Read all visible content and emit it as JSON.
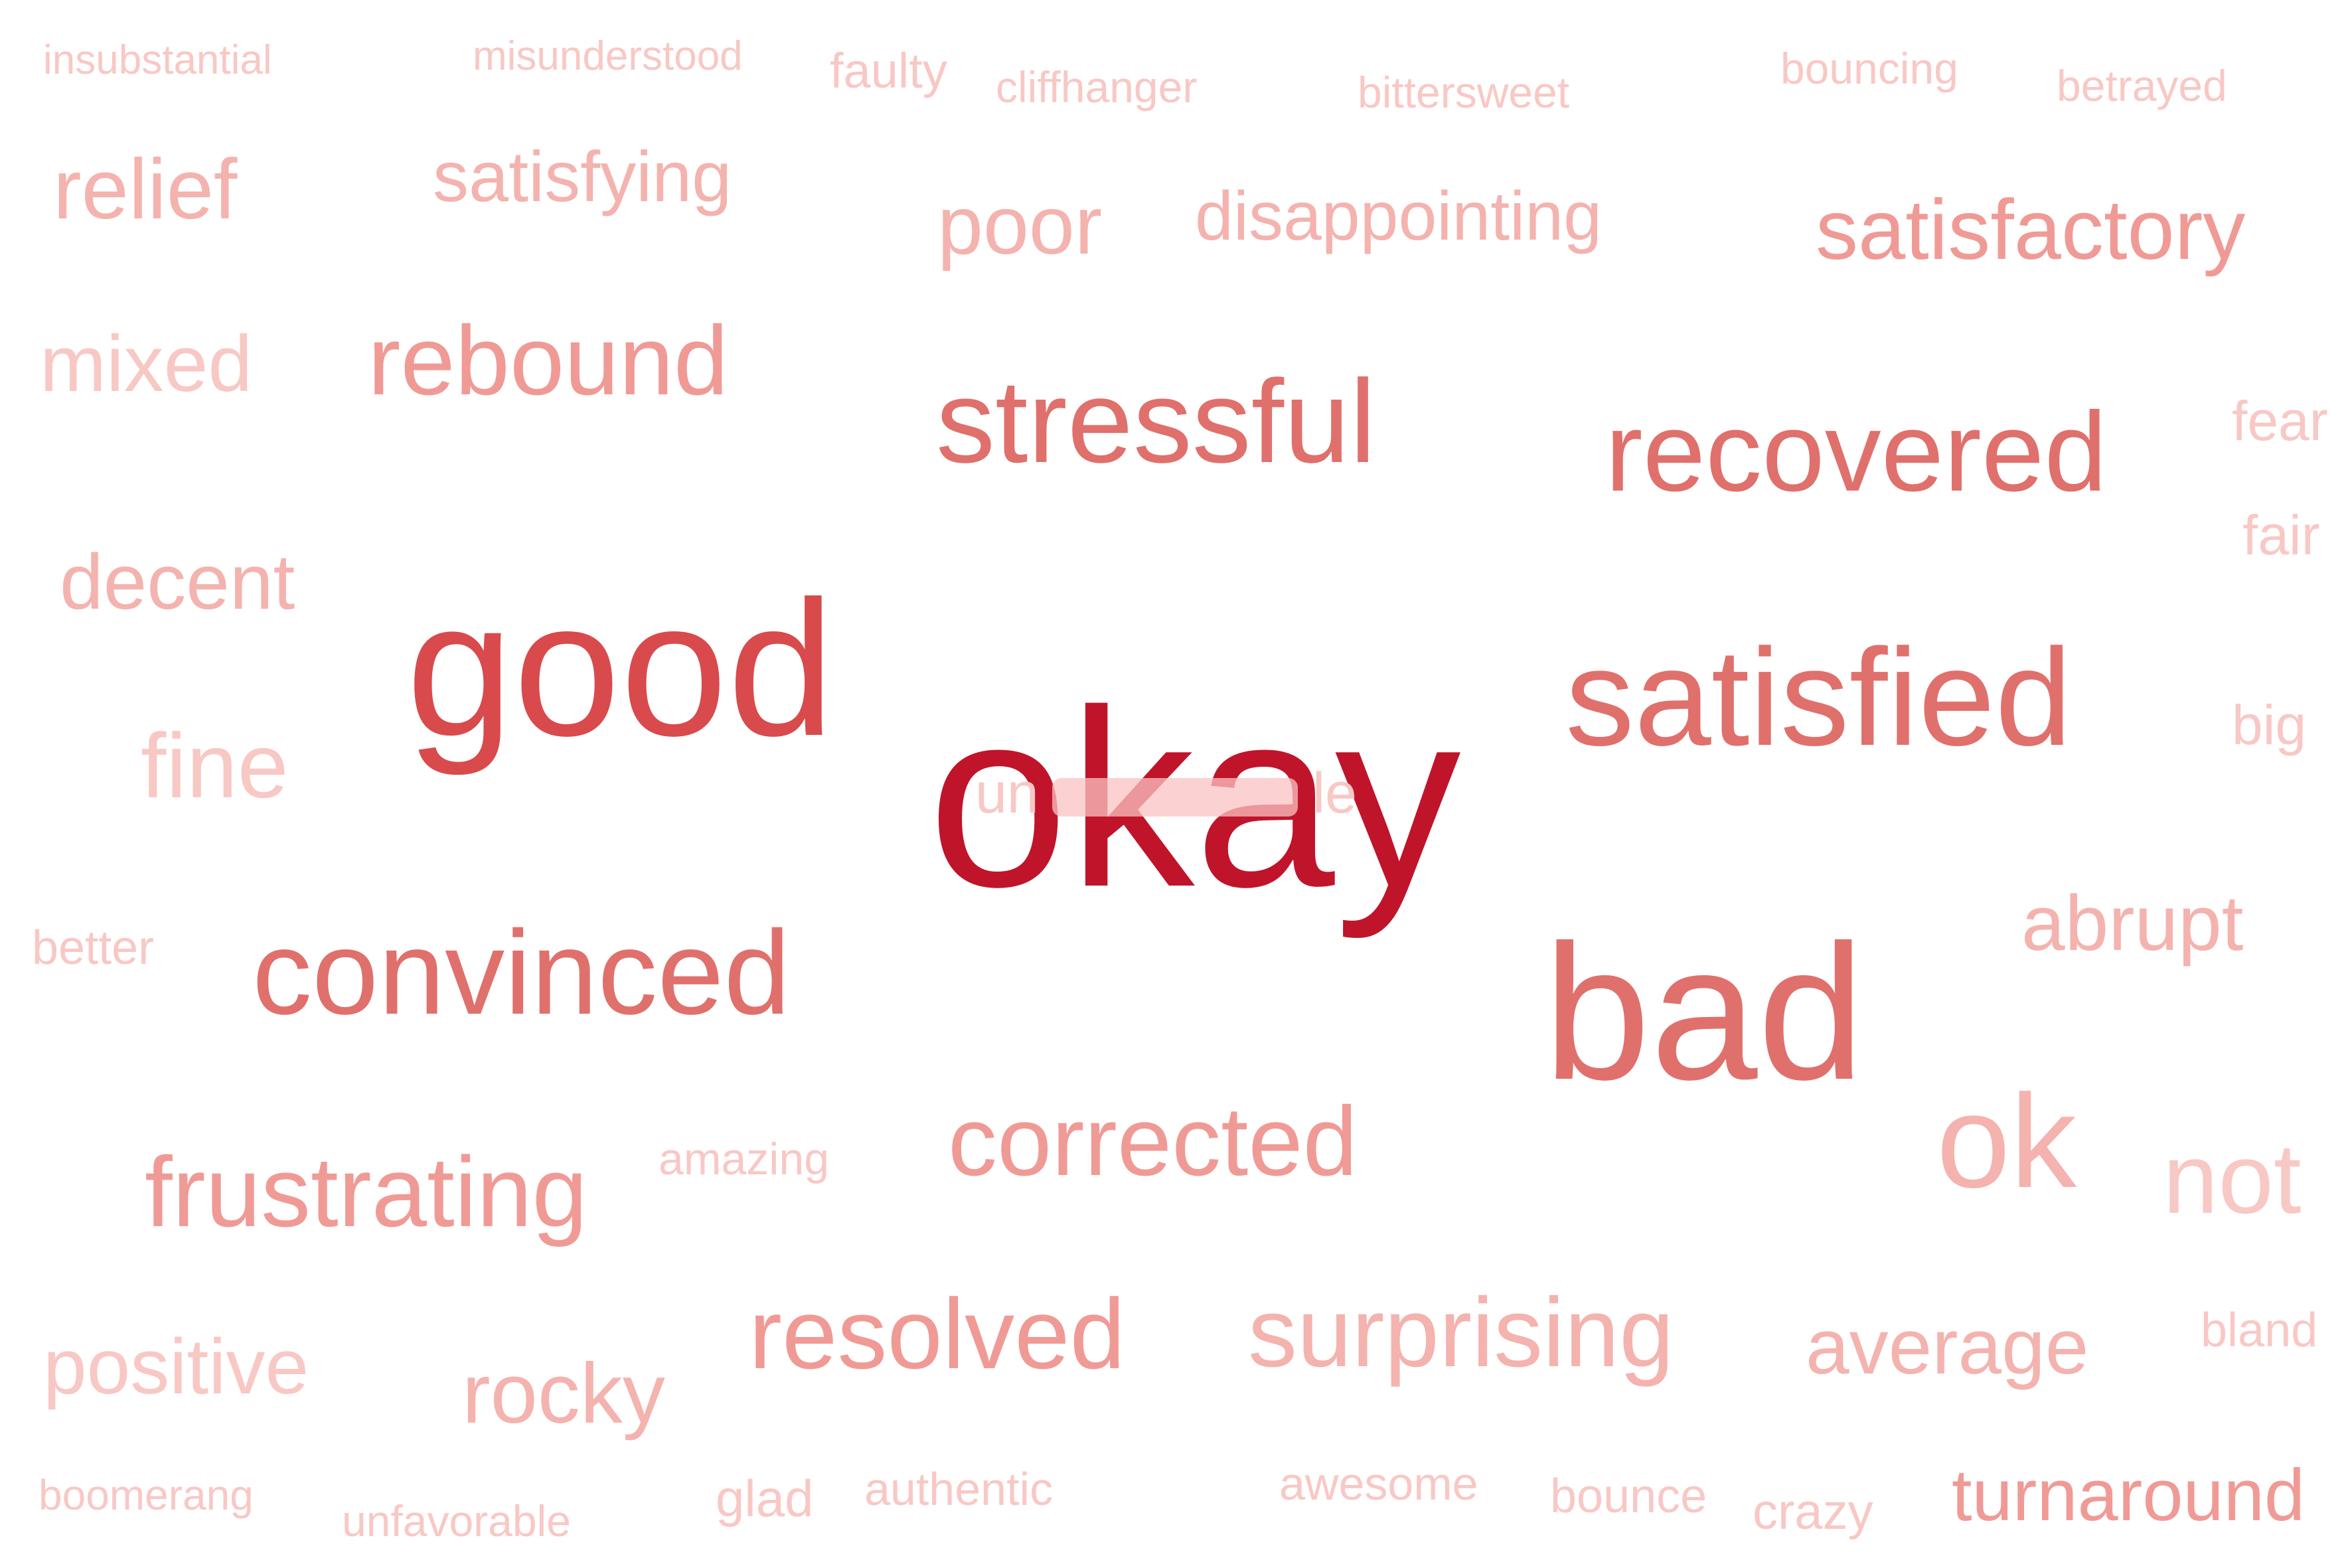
{
  "colors": {
    "background": "#ffffff",
    "strongest": "#c0142a",
    "strong": "#d94a4c",
    "medium": "#e0706c",
    "light": "#f09a96",
    "lighter": "#f4b3ae",
    "faint": "#f8c8c5"
  },
  "words": {
    "okay": "okay",
    "good": "good",
    "satisfied": "satisfied",
    "bad": "bad",
    "convinced": "convinced",
    "recovered": "recovered",
    "stressful": "stressful",
    "rebound": "rebound",
    "satisfactory": "satisfactory",
    "ok": "ok",
    "corrected": "corrected",
    "resolved": "resolved",
    "surprising": "surprising",
    "frustrating": "frustrating",
    "relief": "relief",
    "satisfying": "satisfying",
    "poor": "poor",
    "disappointing": "disappointing",
    "mixed": "mixed",
    "decent": "decent",
    "fine": "fine",
    "abrupt": "abrupt",
    "not": "not",
    "average": "average",
    "positive": "positive",
    "rocky": "rocky",
    "turnaround": "turnaround",
    "insubstantial": "insubstantial",
    "misunderstood": "misunderstood",
    "faulty": "faulty",
    "cliffhanger": "cliffhanger",
    "bittersweet": "bittersweet",
    "bouncing": "bouncing",
    "betrayed": "betrayed",
    "fear": "fear",
    "fair": "fair",
    "big": "big",
    "better": "better",
    "amazing": "amazing",
    "bland": "bland",
    "boomerang": "boomerang",
    "unfavorable": "unfavorable",
    "glad": "glad",
    "authentic": "authentic",
    "awesome": "awesome",
    "bounce": "bounce",
    "crazy": "crazy"
  },
  "overlap_cluster": {
    "visible_fragments": [
      "un",
      "le"
    ]
  }
}
